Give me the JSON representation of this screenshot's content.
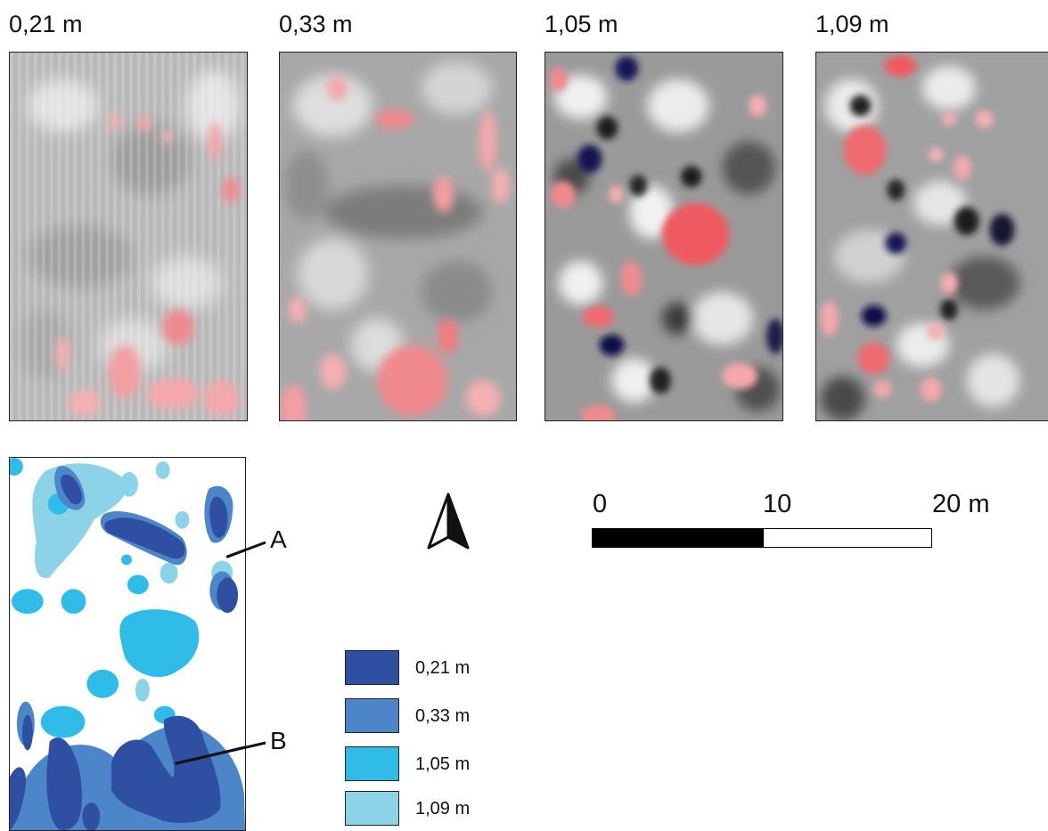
{
  "radargrams": {
    "panels": [
      {
        "depth": "0,21 m"
      },
      {
        "depth": "0,33 m"
      },
      {
        "depth": "1,05 m"
      },
      {
        "depth": "1,09 m"
      }
    ]
  },
  "callouts": {
    "a": "A",
    "b": "B"
  },
  "scale_bar": {
    "ticks": [
      "0",
      "10",
      "20 m"
    ]
  },
  "legend": {
    "items": [
      {
        "label": "0,21 m",
        "color": "#2e4fa2"
      },
      {
        "label": "0,33 m",
        "color": "#4c86c8"
      },
      {
        "label": "1,05 m",
        "color": "#2fbce9"
      },
      {
        "label": "1,09 m",
        "color": "#8dd3e8"
      }
    ]
  },
  "colors": {
    "anomaly_high": "#e8363c",
    "anomaly_low": "#1a1a66",
    "background_gray": "#9a9a9a"
  }
}
